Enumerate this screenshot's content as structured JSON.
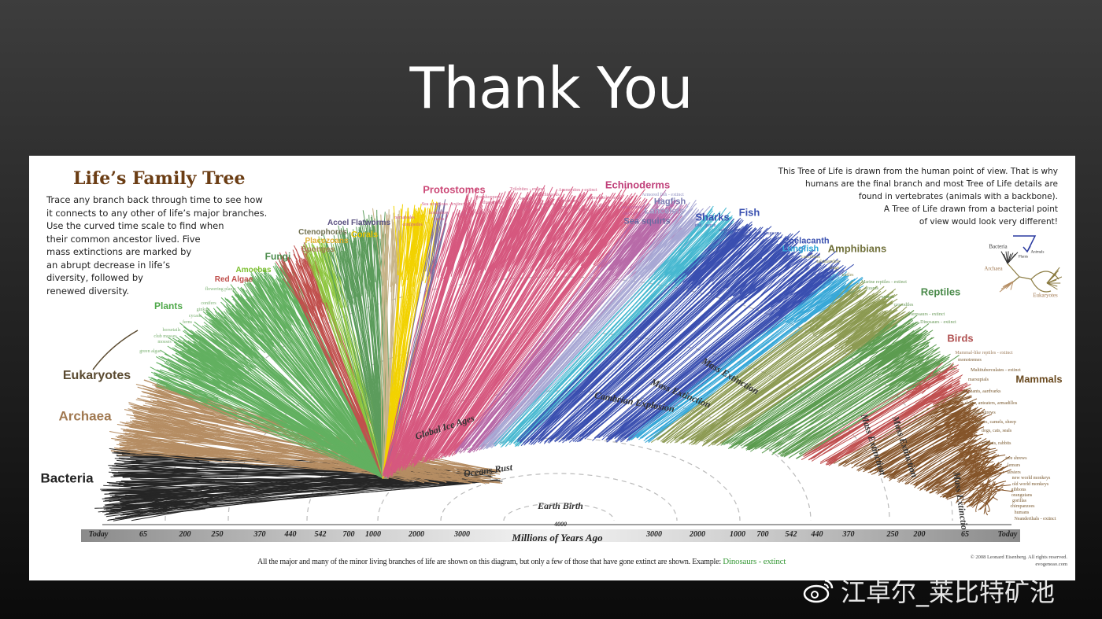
{
  "slide": {
    "title": "Thank You"
  },
  "poster": {
    "title": "Life’s Family Tree",
    "intro_lines": [
      "Trace any branch back through time to see how",
      "it connects to any other of life’s major branches.",
      "Use the curved time scale to find when",
      "their common ancestor lived. Five",
      "mass extinctions are marked by",
      "an abrupt decrease in life’s",
      "diversity, followed by",
      "renewed diversity."
    ],
    "pov_lines": [
      "This Tree of Life is drawn from the human point of view. That is why",
      "humans are the final branch and most Tree of Life details are",
      "found in vertebrates (animals with a backbone).",
      "A Tree of Life drawn from a bacterial point",
      "of view would look very different!"
    ],
    "inset": {
      "bacteria": "Bacteria",
      "archaea": "Archaea",
      "eukaryotes": "Eukaryotes",
      "plants": "Plants",
      "animals": "Animals"
    },
    "time_events": [
      "Earth Birth",
      "Oceans Rust",
      "Global Ice Ages",
      "Cambrian Explosion",
      "Mass Extinction",
      "Mass Extinction",
      "Mass Extinction",
      "Mass Extinction",
      "Mass Extinction",
      "4000"
    ],
    "time_scale": {
      "left": [
        "Today",
        "65",
        "200",
        "250",
        "370",
        "440",
        "542",
        "700",
        "1000",
        "2000",
        "3000"
      ],
      "center": "Millions of Years Ago",
      "right": [
        "3000",
        "2000",
        "1000",
        "700",
        "542",
        "440",
        "370",
        "250",
        "200",
        "65",
        "Today"
      ]
    },
    "footer": {
      "text": "All the major and many of the minor living branches of life are shown on this diagram, but only a few of those that have gone extinct are shown. Example:",
      "example": "Dinosaurs - extinct"
    },
    "credit": [
      "© 2008 Leonard Eisenberg. All rights reserved.",
      "evogeneao.com"
    ]
  },
  "clades": [
    {
      "name": "Bacteria",
      "color": "#262626"
    },
    {
      "name": "Archaea",
      "color": "#b58d63"
    },
    {
      "name": "Plants",
      "color": "#62b060"
    },
    {
      "name": "Red Algae",
      "color": "#c0504d"
    },
    {
      "name": "Amoebas",
      "color": "#8dc63f"
    },
    {
      "name": "Fungi",
      "color": "#5c9c5c"
    },
    {
      "name": "Sponges",
      "color": "#c8b48a"
    },
    {
      "name": "Corals",
      "color": "#f2d200"
    },
    {
      "name": "Acoel Flatworms",
      "color": "#7b6fa0"
    },
    {
      "name": "Protostomes",
      "color": "#d6587f"
    },
    {
      "name": "Echinoderms",
      "color": "#b86aa8"
    },
    {
      "name": "Hagfish",
      "color": "#a8a8d4"
    },
    {
      "name": "Sea squirts",
      "color": "#46b8d0"
    },
    {
      "name": "Fish",
      "color": "#3a4fb0"
    },
    {
      "name": "Lungfish",
      "color": "#38a8d8"
    },
    {
      "name": "Amphibians",
      "color": "#8c9a52"
    },
    {
      "name": "Reptiles",
      "color": "#5c9c50"
    },
    {
      "name": "Birds",
      "color": "#c05050"
    },
    {
      "name": "Mammals",
      "color": "#85552a"
    }
  ],
  "labels": [
    {
      "text": "Bacteria",
      "color": "#222222"
    },
    {
      "text": "Archaea",
      "color": "#a07850"
    },
    {
      "text": "Eukaryotes",
      "color": "#5a4a30"
    },
    {
      "text": "Plants",
      "color": "#4fa84a"
    },
    {
      "text": "Red Algae",
      "color": "#c0504d"
    },
    {
      "text": "Amoebas",
      "color": "#7cbf30"
    },
    {
      "text": "Fungi",
      "color": "#4a8a4a"
    },
    {
      "text": "Sponges",
      "color": "#a08050"
    },
    {
      "text": "Placozoans",
      "color": "#e0b030"
    },
    {
      "text": "Ctenophores",
      "color": "#707050"
    },
    {
      "text": "Corals",
      "color": "#e8c400"
    },
    {
      "text": "Acoel Flatworms",
      "color": "#5a5080"
    },
    {
      "text": "Protostomes",
      "color": "#cc4a78"
    },
    {
      "text": "Echinoderms",
      "color": "#c0407a"
    },
    {
      "text": "Hagfish",
      "color": "#7878b0"
    },
    {
      "text": "Lancelets",
      "color": "#a0a0c8"
    },
    {
      "text": "Sea squirts",
      "color": "#6a6aa0"
    },
    {
      "text": "Sharks",
      "color": "#3a50b0"
    },
    {
      "text": "Fish",
      "color": "#3a50b0"
    },
    {
      "text": "Coelacanth",
      "color": "#3a50b0"
    },
    {
      "text": "Lungfish",
      "color": "#30a8d8"
    },
    {
      "text": "Amphibians",
      "color": "#70703a"
    },
    {
      "text": "Reptiles",
      "color": "#4a8a4a"
    },
    {
      "text": "Birds",
      "color": "#b05050"
    },
    {
      "text": "Mammals",
      "color": "#6a4a20"
    },
    {
      "text": "flowering plants",
      "color": "#7ab070"
    },
    {
      "text": "conifers",
      "color": "#7ab070"
    },
    {
      "text": "ginkgo",
      "color": "#7ab070"
    },
    {
      "text": "cycads",
      "color": "#7ab070"
    },
    {
      "text": "ferns",
      "color": "#7ab070"
    },
    {
      "text": "horsetails",
      "color": "#7ab070"
    },
    {
      "text": "club mosses",
      "color": "#7ab070"
    },
    {
      "text": "mosses",
      "color": "#7ab070"
    },
    {
      "text": "green algae",
      "color": "#7ab070"
    },
    {
      "text": "Trilobites - extinct",
      "color": "#d06088"
    },
    {
      "text": "grasshoppers",
      "color": "#d06088"
    },
    {
      "text": "beetles",
      "color": "#d06088"
    },
    {
      "text": "ants",
      "color": "#d06088"
    },
    {
      "text": "bees",
      "color": "#d06088"
    },
    {
      "text": "butterflies",
      "color": "#d06088"
    },
    {
      "text": "flies",
      "color": "#d06088"
    },
    {
      "text": "brachiopods",
      "color": "#d06088"
    },
    {
      "text": "bryozoans",
      "color": "#d06088"
    },
    {
      "text": "snails",
      "color": "#d06088"
    },
    {
      "text": "clams",
      "color": "#d06088"
    },
    {
      "text": "Ammonites - extinct",
      "color": "#d06088"
    },
    {
      "text": "segmented worms",
      "color": "#d06088"
    },
    {
      "text": "octopus",
      "color": "#d06088"
    },
    {
      "text": "Sea scorpions - extinct",
      "color": "#d06088"
    },
    {
      "text": "dragonflies",
      "color": "#d06088"
    },
    {
      "text": "lice",
      "color": "#d06088"
    },
    {
      "text": "horseshoe",
      "color": "#d06088"
    },
    {
      "text": "crabs",
      "color": "#d06088"
    },
    {
      "text": "spiders",
      "color": "#d06088"
    },
    {
      "text": "crabs",
      "color": "#d06088"
    },
    {
      "text": "nematodes",
      "color": "#d06088"
    },
    {
      "text": "centipedes",
      "color": "#d06088"
    },
    {
      "text": "Armored fish - extinct",
      "color": "#9090c0"
    },
    {
      "text": "sea urchins",
      "color": "#c060a0"
    },
    {
      "text": "starfish",
      "color": "#c060a0"
    },
    {
      "text": "cod",
      "color": "#4050a8"
    },
    {
      "text": "perch",
      "color": "#4050a8"
    },
    {
      "text": "salmon",
      "color": "#4050a8"
    },
    {
      "text": "herring",
      "color": "#4050a8"
    },
    {
      "text": "eels",
      "color": "#4050a8"
    },
    {
      "text": "gars",
      "color": "#4050a8"
    },
    {
      "text": "stugeon",
      "color": "#4050a8"
    },
    {
      "text": "caecilians",
      "color": "#8a8a50"
    },
    {
      "text": "salamanders",
      "color": "#8a8a50"
    },
    {
      "text": "frogs",
      "color": "#8a8a50"
    },
    {
      "text": "turtles",
      "color": "#8a8a50"
    },
    {
      "text": "Marine reptiles - extinct",
      "color": "#6a9a5a"
    },
    {
      "text": "lizards",
      "color": "#6a9a5a"
    },
    {
      "text": "snakes",
      "color": "#6a9a5a"
    },
    {
      "text": "crocodiles",
      "color": "#6a9a5a"
    },
    {
      "text": "Pterosaurs - extinct",
      "color": "#6a9a5a"
    },
    {
      "text": "Dinosaurs - extinct",
      "color": "#6a9a5a"
    },
    {
      "text": "Mammal-like reptiles - extinct",
      "color": "#a08060"
    },
    {
      "text": "monotremes",
      "color": "#7a5a30"
    },
    {
      "text": "Multituberculates - extinct",
      "color": "#7a5a30"
    },
    {
      "text": "marsupials",
      "color": "#7a5a30"
    },
    {
      "text": "elephants, aardvarks",
      "color": "#7a5a30"
    },
    {
      "text": "sloths, anteaters, armadillos",
      "color": "#7a5a30"
    },
    {
      "text": "bats, shrews",
      "color": "#7a5a30"
    },
    {
      "text": "horses, camels, sheep",
      "color": "#7a5a30"
    },
    {
      "text": "dogs, cats, seals",
      "color": "#7a5a30"
    },
    {
      "text": "rodents, rabbits",
      "color": "#7a5a30"
    },
    {
      "text": "tree shrews",
      "color": "#7a5a30"
    },
    {
      "text": "lemurs",
      "color": "#7a5a30"
    },
    {
      "text": "tarsiers",
      "color": "#7a5a30"
    },
    {
      "text": "new world monkeys",
      "color": "#7a5a30"
    },
    {
      "text": "old world monkeys",
      "color": "#7a5a30"
    },
    {
      "text": "gibbons",
      "color": "#7a5a30"
    },
    {
      "text": "orangutans",
      "color": "#7a5a30"
    },
    {
      "text": "gorillas",
      "color": "#7a5a30"
    },
    {
      "text": "chimpanzees",
      "color": "#7a5a30"
    },
    {
      "text": "humans",
      "color": "#7a5a30"
    },
    {
      "text": "Neanderthals - extinct",
      "color": "#7a5a30"
    }
  ],
  "watermark": {
    "text": "江卓尔_莱比特矿池",
    "icon": "weibo-icon"
  }
}
